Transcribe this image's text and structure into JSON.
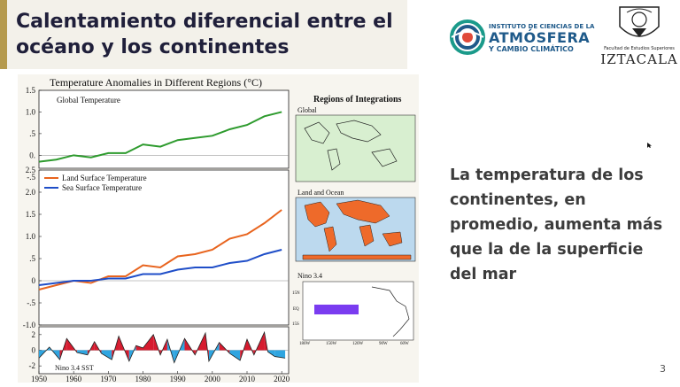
{
  "slide": {
    "title": "Calentamiento diferencial entre el océano y los continentes",
    "body": "La temperatura de los continentes, en promedio, aumenta más que la de la superficie del mar",
    "page_number": "3",
    "accent_color": "#b59a4e",
    "title_color": "#1f1f3a"
  },
  "logos": {
    "icacc": {
      "line1": "INSTITUTO DE CIENCIAS DE LA",
      "line2": "ATMÓSFERA",
      "line3": "Y CAMBIO CLIMÁTICO",
      "icon": "globe-swirl-icon"
    },
    "unam": {
      "subtitle": "Facultad de Estudios Superiores",
      "name": "IZTACALA",
      "icon": "unam-seal-icon"
    }
  },
  "figure": {
    "title": "Temperature Anomalies in Different Regions (°C)",
    "regions_title": "Regions of Integrations",
    "maps": [
      {
        "label": "Global"
      },
      {
        "label": "Land and Ocean"
      },
      {
        "label": "Nino 3.4",
        "lat_labels": [
          "15N",
          "EQ",
          "15S"
        ],
        "lon_labels": [
          "180W",
          "150W",
          "120W",
          "90W",
          "60W"
        ]
      }
    ]
  },
  "chart_data": [
    {
      "type": "line",
      "series": [
        {
          "name": "Global Temperature",
          "color": "#2e9b2e",
          "x": [
            1950,
            1955,
            1960,
            1965,
            1970,
            1975,
            1980,
            1985,
            1990,
            1995,
            2000,
            2005,
            2010,
            2015,
            2020
          ],
          "values": [
            -0.15,
            -0.1,
            0.0,
            -0.05,
            0.05,
            0.05,
            0.25,
            0.2,
            0.35,
            0.4,
            0.45,
            0.6,
            0.7,
            0.9,
            1.0
          ]
        }
      ],
      "xlim": [
        1950,
        2022
      ],
      "ylim": [
        -0.3,
        1.5
      ],
      "yticks": [
        "1.5",
        "1.0",
        ".5",
        "0.",
        "-.5"
      ]
    },
    {
      "type": "line",
      "series": [
        {
          "name": "Land Surface Temperature",
          "color": "#e8641e",
          "x": [
            1950,
            1955,
            1960,
            1965,
            1970,
            1975,
            1980,
            1985,
            1990,
            1995,
            2000,
            2005,
            2010,
            2015,
            2020
          ],
          "values": [
            -0.2,
            -0.1,
            0.0,
            -0.05,
            0.1,
            0.1,
            0.35,
            0.3,
            0.55,
            0.6,
            0.7,
            0.95,
            1.05,
            1.3,
            1.6
          ]
        },
        {
          "name": "Sea Surface Temperature",
          "color": "#1f4ec8",
          "x": [
            1950,
            1955,
            1960,
            1965,
            1970,
            1975,
            1980,
            1985,
            1990,
            1995,
            2000,
            2005,
            2010,
            2015,
            2020
          ],
          "values": [
            -0.1,
            -0.05,
            0.0,
            0.0,
            0.05,
            0.05,
            0.15,
            0.15,
            0.25,
            0.3,
            0.3,
            0.4,
            0.45,
            0.6,
            0.7
          ]
        }
      ],
      "xlim": [
        1950,
        2022
      ],
      "ylim": [
        -1.0,
        2.5
      ],
      "yticks": [
        "2.5",
        "2.0",
        "1.5",
        "1.0",
        ".5",
        "0",
        "-.5",
        "-1.0"
      ]
    },
    {
      "type": "area",
      "series": [
        {
          "name": "Nino 3.4 SST",
          "x": [
            1950,
            1953,
            1956,
            1958,
            1961,
            1964,
            1966,
            1968,
            1971,
            1973,
            1976,
            1978,
            1980,
            1983,
            1985,
            1987,
            1989,
            1992,
            1995,
            1998,
            1999,
            2002,
            2005,
            2008,
            2010,
            2012,
            2015,
            2016,
            2018,
            2021
          ],
          "values": [
            -1.0,
            0.4,
            -1.2,
            1.5,
            -0.3,
            -0.6,
            1.1,
            -0.4,
            -1.2,
            1.8,
            -1.4,
            0.6,
            0.3,
            2.0,
            -0.6,
            1.4,
            -1.6,
            1.5,
            -0.6,
            2.2,
            -1.4,
            1.0,
            -0.4,
            -1.3,
            1.4,
            -0.6,
            2.3,
            -0.2,
            -0.8,
            -1.0
          ]
        }
      ],
      "xlim": [
        1950,
        2022
      ],
      "ylim": [
        -3,
        3
      ],
      "yticks": [
        "2",
        "0",
        "-2"
      ],
      "xticks": [
        "1950",
        "1960",
        "1970",
        "1980",
        "1990",
        "2000",
        "2010",
        "2020"
      ],
      "positive_color": "#d61b2f",
      "negative_color": "#2fa5e0"
    }
  ]
}
